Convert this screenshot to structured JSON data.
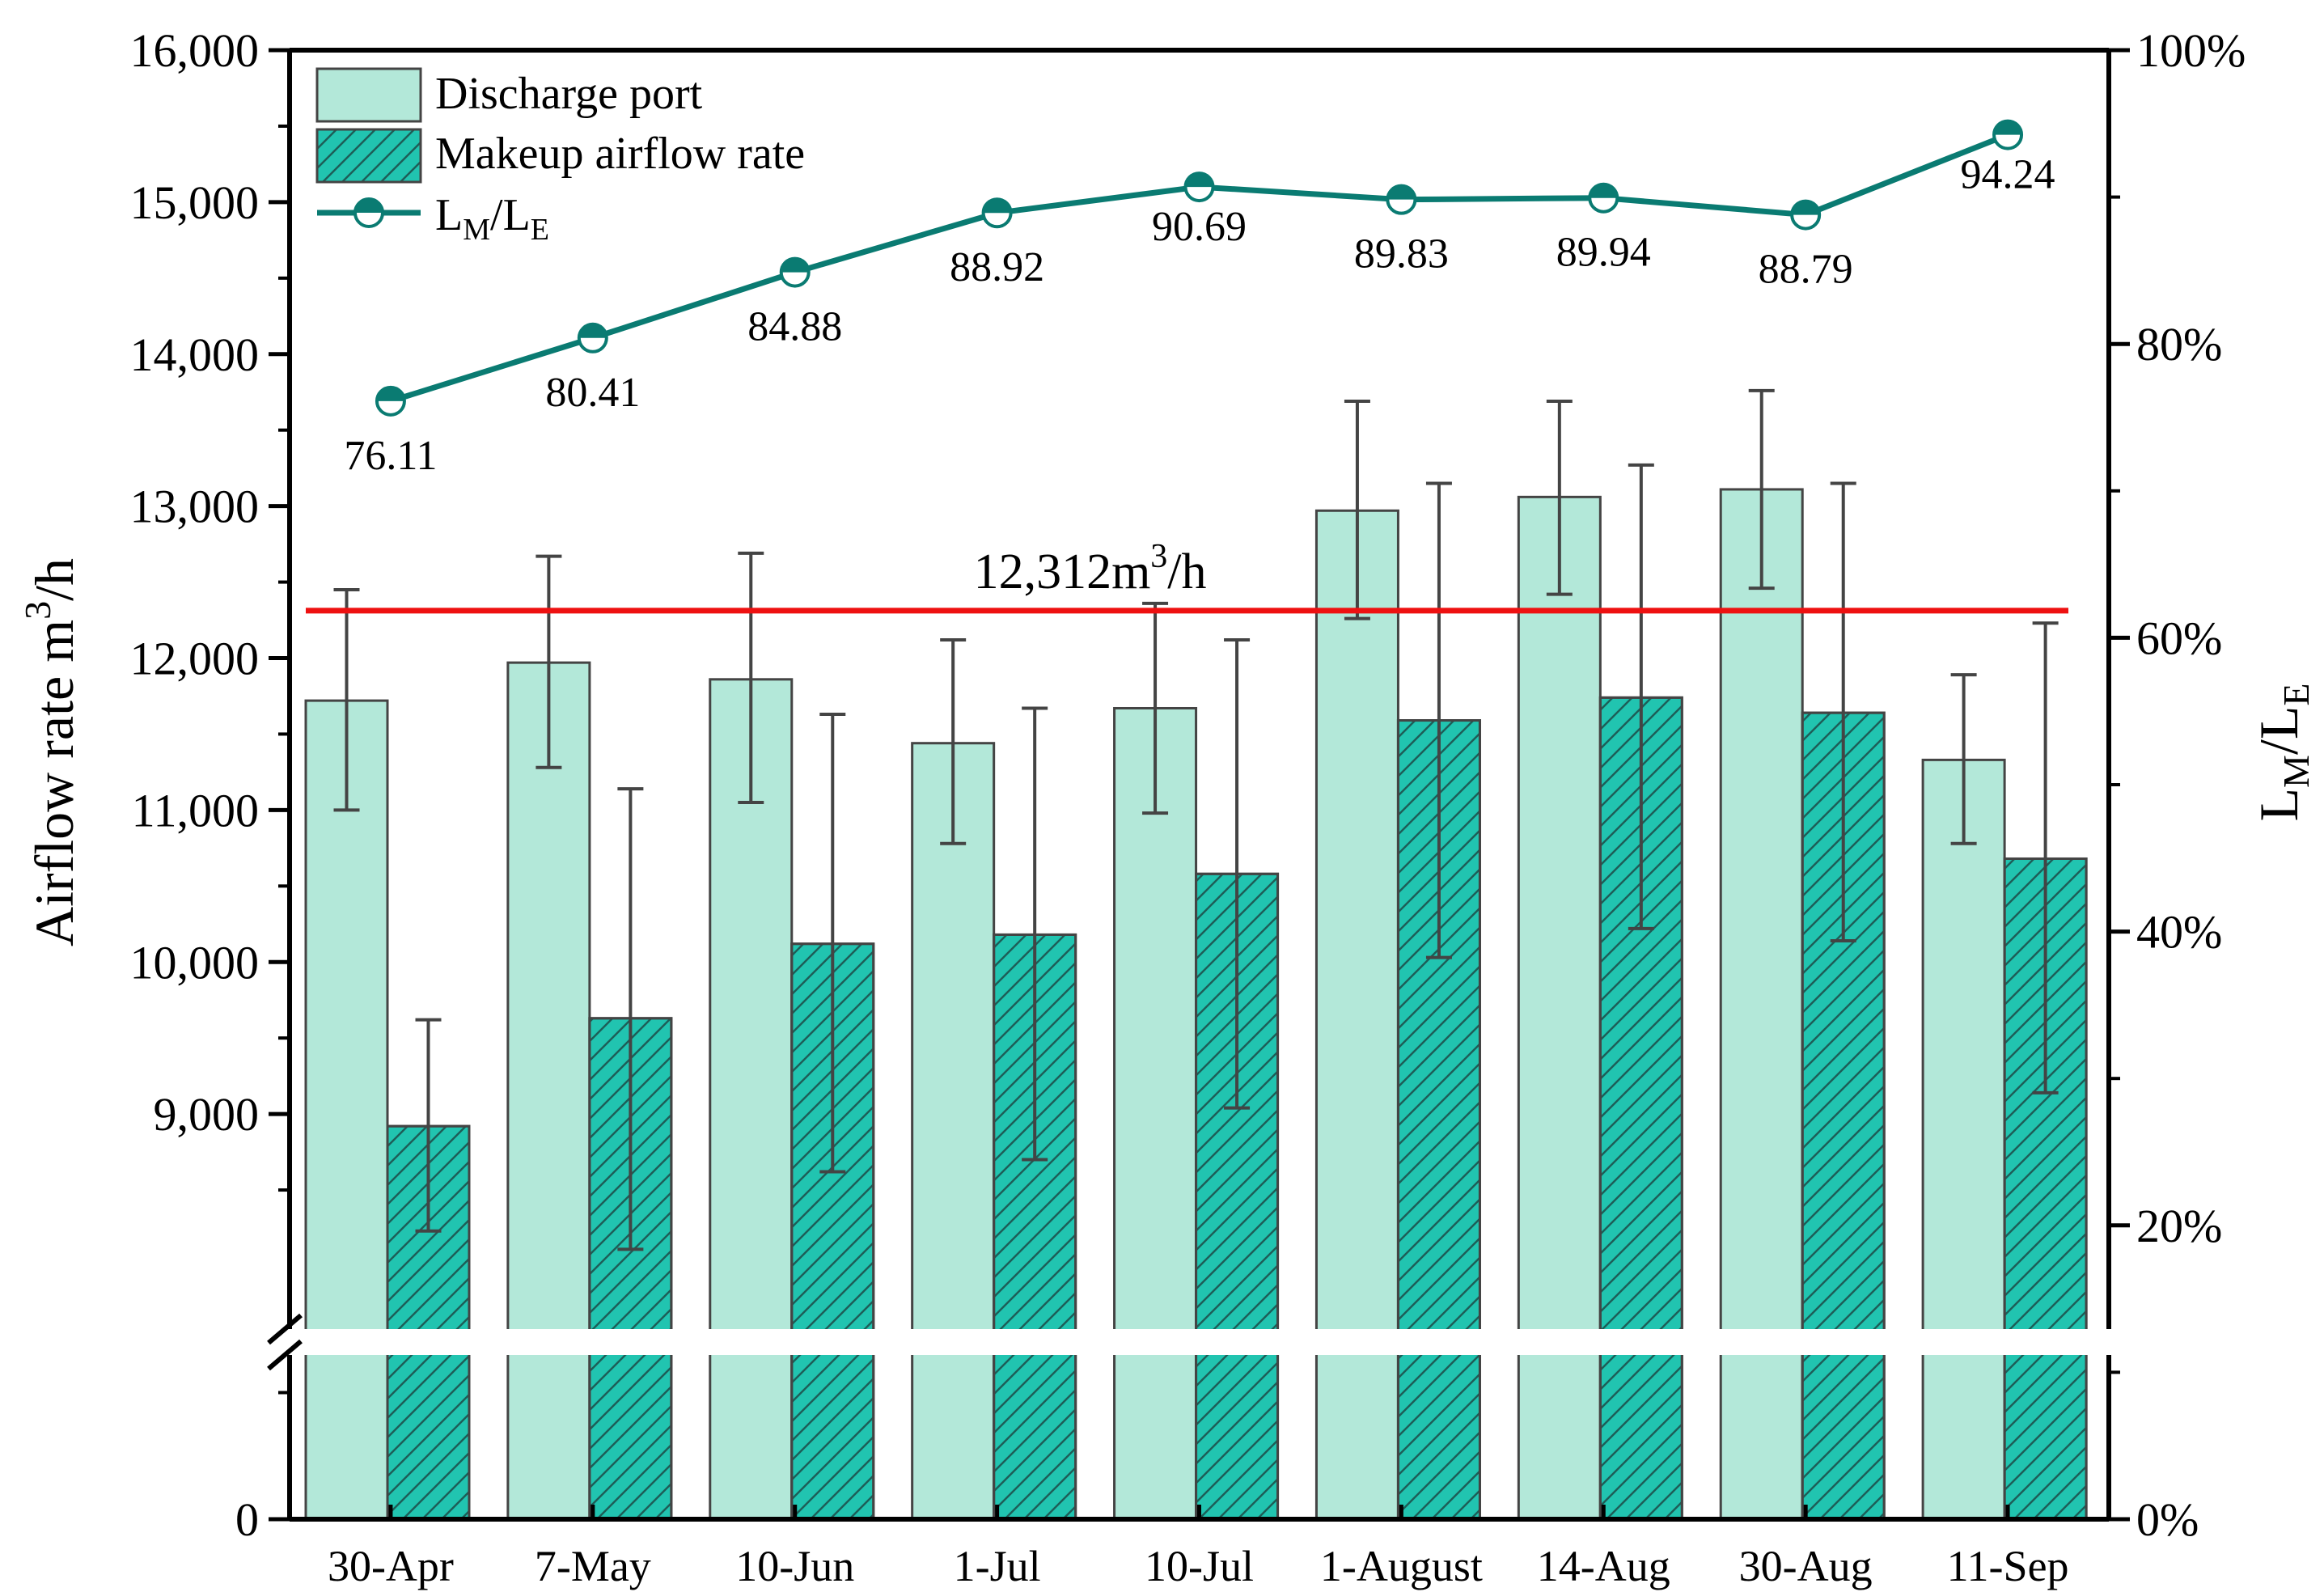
{
  "chart_data": {
    "type": "bar+line",
    "categories": [
      "30-Apr",
      "7-May",
      "10-Jun",
      "1-Jul",
      "10-Jul",
      "1-August",
      "14-Aug",
      "30-Aug",
      "11-Sep"
    ],
    "series": [
      {
        "name": "Discharge port",
        "type": "bar",
        "axis": "left",
        "values": [
          11720,
          11970,
          11860,
          11440,
          11670,
          12970,
          13060,
          13110,
          11330
        ],
        "error_low": [
          11000,
          11280,
          11050,
          10780,
          10980,
          12260,
          12420,
          12460,
          10780
        ],
        "error_high": [
          12450,
          12670,
          12690,
          12120,
          12360,
          13690,
          13690,
          13760,
          11890
        ],
        "color": "#b3e8d9"
      },
      {
        "name": "Makeup airflow rate",
        "type": "bar",
        "axis": "left",
        "values": [
          8920,
          9630,
          10120,
          10180,
          10580,
          11590,
          11740,
          11640,
          10680
        ],
        "error_low": [
          8230,
          8110,
          8620,
          8700,
          9040,
          10030,
          10220,
          10140,
          9140
        ],
        "error_high": [
          9620,
          11140,
          11630,
          11670,
          12120,
          13150,
          13270,
          13150,
          12230
        ],
        "color": "#21c4b0"
      },
      {
        "name": "LM/LE",
        "type": "line",
        "axis": "right",
        "values": [
          76.11,
          80.41,
          84.88,
          88.92,
          90.69,
          89.83,
          89.94,
          88.79,
          94.24
        ],
        "labels": [
          "76.11",
          "80.41",
          "84.88",
          "88.92",
          "90.69",
          "89.83",
          "89.94",
          "88.79",
          "94.24"
        ],
        "color": "#0a7b72"
      }
    ],
    "reference_line": {
      "value": 12312,
      "label": "12,312m",
      "label_sup": "3",
      "label_tail": "/h",
      "color": "#ee1111"
    },
    "y_left": {
      "label": "Airflow rate  m",
      "label_sup": "3",
      "label_tail": "/h",
      "ticks": [
        "0",
        "9,000",
        "10,000",
        "11,000",
        "12,000",
        "13,000",
        "14,000",
        "15,000",
        "16,000"
      ],
      "tick_values": [
        0,
        9000,
        10000,
        11000,
        12000,
        13000,
        14000,
        15000,
        16000
      ],
      "broken_range": [
        0,
        8000
      ],
      "top": 16000
    },
    "y_right": {
      "label_main": "L",
      "label_sub1": "M",
      "label_mid": "/L",
      "label_sub2": "E",
      "ticks": [
        "0%",
        "20%",
        "40%",
        "60%",
        "80%",
        "100%"
      ],
      "tick_values": [
        0,
        20,
        40,
        60,
        80,
        100
      ],
      "range": [
        0,
        100
      ]
    },
    "legend": {
      "position": "top-left",
      "entries": [
        {
          "text": "Discharge port"
        },
        {
          "text": "Makeup airflow rate"
        },
        {
          "text": "L",
          "sub1": "M",
          "mid": "/L",
          "sub2": "E"
        }
      ]
    },
    "axis_color": "#000000",
    "error_color": "#444444"
  }
}
